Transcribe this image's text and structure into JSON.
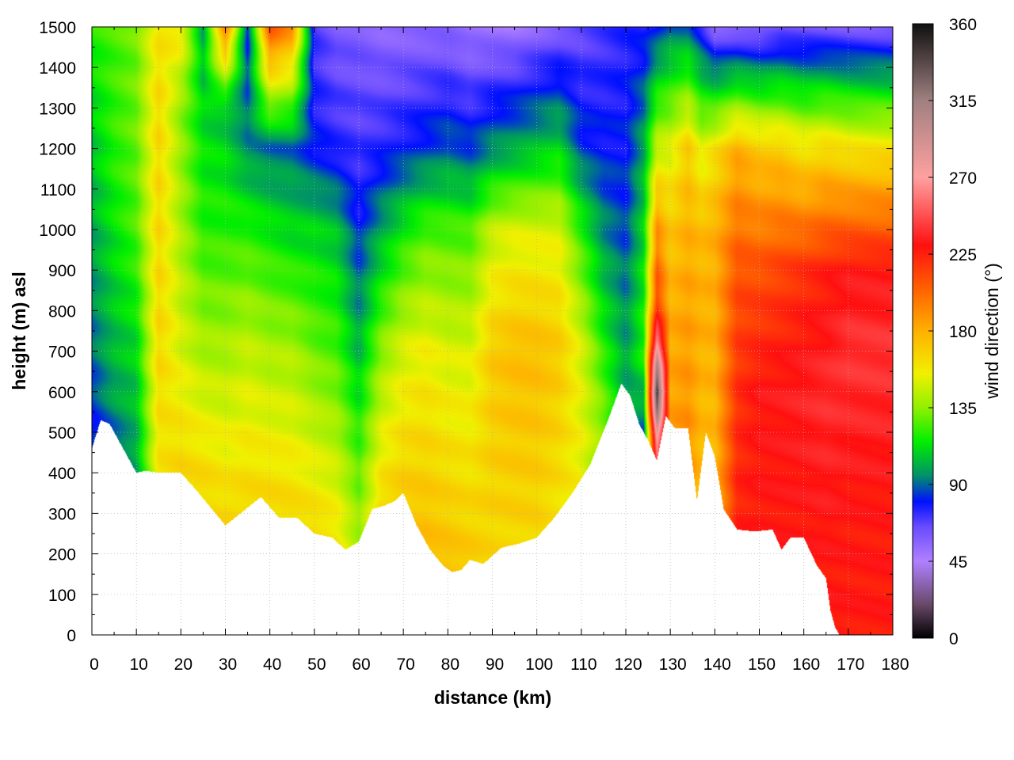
{
  "chart_data": {
    "type": "heatmap",
    "title": "",
    "xlabel": "distance (km)",
    "ylabel": "height (m) asl",
    "colorbar_label": "wind direction (°)",
    "xlim": [
      0,
      180
    ],
    "ylim": [
      0,
      1500
    ],
    "zlim": [
      0,
      360
    ],
    "x_ticks": [
      0,
      10,
      20,
      30,
      40,
      50,
      60,
      70,
      80,
      90,
      100,
      110,
      120,
      130,
      140,
      150,
      160,
      170,
      180
    ],
    "y_ticks": [
      0,
      100,
      200,
      300,
      400,
      500,
      600,
      700,
      800,
      900,
      1000,
      1100,
      1200,
      1300,
      1400,
      1500
    ],
    "colorbar_ticks": [
      0,
      45,
      90,
      135,
      180,
      225,
      270,
      315,
      360
    ],
    "grid": true,
    "colormap": [
      {
        "value": 0,
        "color": "#000000"
      },
      {
        "value": 20,
        "color": "#6a4a6a"
      },
      {
        "value": 45,
        "color": "#b080ff"
      },
      {
        "value": 65,
        "color": "#6a4cff"
      },
      {
        "value": 80,
        "color": "#0010ff"
      },
      {
        "value": 95,
        "color": "#00906a"
      },
      {
        "value": 115,
        "color": "#00ee00"
      },
      {
        "value": 135,
        "color": "#90f000"
      },
      {
        "value": 155,
        "color": "#f0f000"
      },
      {
        "value": 180,
        "color": "#ffb000"
      },
      {
        "value": 205,
        "color": "#ff6000"
      },
      {
        "value": 230,
        "color": "#ff1010"
      },
      {
        "value": 270,
        "color": "#ffa0a0"
      },
      {
        "value": 315,
        "color": "#a08080"
      },
      {
        "value": 360,
        "color": "#101010"
      }
    ],
    "terrain": {
      "x": [
        0,
        2,
        4,
        6,
        8,
        10,
        12,
        15,
        20,
        24,
        27,
        30,
        34,
        38,
        42,
        46,
        50,
        54,
        57,
        60,
        63,
        66,
        68,
        70,
        73,
        76,
        79,
        81,
        83,
        85,
        88,
        92,
        96,
        100,
        104,
        108,
        112,
        116,
        119,
        121,
        123,
        125,
        127,
        129,
        131,
        134,
        136,
        138,
        140,
        142,
        145,
        149,
        153,
        155,
        157,
        160,
        163,
        165,
        166,
        167,
        168,
        170,
        175,
        180
      ],
      "height": [
        460,
        530,
        520,
        480,
        440,
        400,
        405,
        400,
        400,
        350,
        310,
        270,
        305,
        340,
        290,
        290,
        250,
        240,
        210,
        230,
        310,
        320,
        330,
        350,
        270,
        210,
        170,
        155,
        160,
        185,
        175,
        215,
        225,
        240,
        290,
        350,
        420,
        530,
        620,
        590,
        520,
        480,
        430,
        540,
        510,
        510,
        330,
        500,
        440,
        310,
        260,
        255,
        260,
        210,
        240,
        240,
        170,
        140,
        60,
        20,
        0,
        0,
        0,
        0
      ]
    },
    "field_profiles": [
      {
        "x": 0,
        "heights": [
          0,
          500,
          700,
          1000,
          1300,
          1500
        ],
        "direction": [
          80,
          80,
          90,
          100,
          110,
          120
        ]
      },
      {
        "x": 5,
        "heights": [
          0,
          450,
          600,
          900,
          1200,
          1500
        ],
        "direction": [
          70,
          85,
          100,
          110,
          120,
          125
        ]
      },
      {
        "x": 10,
        "heights": [
          0,
          450,
          700,
          1000,
          1300,
          1500
        ],
        "direction": [
          90,
          100,
          110,
          125,
          130,
          130
        ]
      },
      {
        "x": 15,
        "heights": [
          0,
          450,
          700,
          1000,
          1300,
          1500
        ],
        "direction": [
          150,
          160,
          165,
          165,
          165,
          160
        ]
      },
      {
        "x": 20,
        "heights": [
          0,
          420,
          700,
          1000,
          1300,
          1500
        ],
        "direction": [
          155,
          165,
          150,
          140,
          135,
          160
        ]
      },
      {
        "x": 25,
        "heights": [
          0,
          380,
          700,
          1000,
          1300,
          1500
        ],
        "direction": [
          160,
          165,
          140,
          120,
          110,
          100
        ]
      },
      {
        "x": 30,
        "heights": [
          0,
          300,
          700,
          1000,
          1300,
          1500
        ],
        "direction": [
          150,
          165,
          140,
          120,
          105,
          200
        ]
      },
      {
        "x": 35,
        "heights": [
          0,
          330,
          700,
          1000,
          1200,
          1500
        ],
        "direction": [
          160,
          165,
          145,
          120,
          95,
          80
        ]
      },
      {
        "x": 40,
        "heights": [
          0,
          330,
          700,
          1000,
          1200,
          1500
        ],
        "direction": [
          160,
          165,
          140,
          115,
          90,
          210
        ]
      },
      {
        "x": 45,
        "heights": [
          0,
          300,
          700,
          1000,
          1200,
          1500
        ],
        "direction": [
          165,
          165,
          140,
          110,
          90,
          190
        ]
      },
      {
        "x": 50,
        "heights": [
          0,
          260,
          700,
          1000,
          1200,
          1500
        ],
        "direction": [
          165,
          165,
          130,
          110,
          80,
          70
        ]
      },
      {
        "x": 55,
        "heights": [
          0,
          240,
          700,
          1000,
          1200,
          1500
        ],
        "direction": [
          165,
          160,
          125,
          105,
          75,
          60
        ]
      },
      {
        "x": 60,
        "heights": [
          0,
          220,
          500,
          800,
          1100,
          1500
        ],
        "direction": [
          170,
          140,
          120,
          95,
          75,
          60
        ]
      },
      {
        "x": 65,
        "heights": [
          0,
          320,
          700,
          1000,
          1200,
          1500
        ],
        "direction": [
          165,
          165,
          135,
          100,
          75,
          55
        ]
      },
      {
        "x": 70,
        "heights": [
          0,
          340,
          700,
          1000,
          1200,
          1500
        ],
        "direction": [
          180,
          170,
          150,
          115,
          80,
          55
        ]
      },
      {
        "x": 75,
        "heights": [
          0,
          230,
          700,
          1000,
          1200,
          1500
        ],
        "direction": [
          185,
          175,
          155,
          125,
          85,
          55
        ]
      },
      {
        "x": 80,
        "heights": [
          0,
          160,
          700,
          1000,
          1200,
          1500
        ],
        "direction": [
          195,
          175,
          150,
          125,
          90,
          55
        ]
      },
      {
        "x": 85,
        "heights": [
          0,
          180,
          700,
          1000,
          1200,
          1500
        ],
        "direction": [
          185,
          170,
          150,
          125,
          85,
          50
        ]
      },
      {
        "x": 90,
        "heights": [
          0,
          215,
          700,
          1000,
          1200,
          1500
        ],
        "direction": [
          150,
          165,
          170,
          145,
          95,
          50
        ]
      },
      {
        "x": 95,
        "heights": [
          0,
          225,
          700,
          1000,
          1200,
          1500
        ],
        "direction": [
          145,
          165,
          175,
          150,
          100,
          50
        ]
      },
      {
        "x": 100,
        "heights": [
          0,
          240,
          700,
          1000,
          1200,
          1500
        ],
        "direction": [
          150,
          165,
          175,
          150,
          105,
          55
        ]
      },
      {
        "x": 105,
        "heights": [
          0,
          290,
          700,
          1000,
          1200,
          1500
        ],
        "direction": [
          140,
          160,
          170,
          150,
          110,
          60
        ]
      },
      {
        "x": 110,
        "heights": [
          0,
          350,
          700,
          1000,
          1200,
          1500
        ],
        "direction": [
          140,
          155,
          150,
          120,
          85,
          65
        ]
      },
      {
        "x": 115,
        "heights": [
          0,
          500,
          700,
          1000,
          1200,
          1500
        ],
        "direction": [
          120,
          135,
          120,
          95,
          80,
          70
        ]
      },
      {
        "x": 120,
        "heights": [
          0,
          600,
          800,
          1000,
          1200,
          1500
        ],
        "direction": [
          90,
          100,
          95,
          85,
          80,
          75
        ]
      },
      {
        "x": 124,
        "heights": [
          0,
          480,
          700,
          1000,
          1200,
          1500
        ],
        "direction": [
          80,
          85,
          120,
          110,
          100,
          75
        ]
      },
      {
        "x": 127,
        "heights": [
          0,
          440,
          600,
          800,
          1000,
          1500
        ],
        "direction": [
          80,
          250,
          350,
          220,
          190,
          80
        ]
      },
      {
        "x": 130,
        "heights": [
          0,
          520,
          800,
          1000,
          1200,
          1500
        ],
        "direction": [
          180,
          185,
          180,
          170,
          150,
          90
        ]
      },
      {
        "x": 134,
        "heights": [
          0,
          510,
          800,
          1000,
          1200,
          1500
        ],
        "direction": [
          185,
          190,
          185,
          180,
          170,
          90
        ]
      },
      {
        "x": 137,
        "heights": [
          0,
          400,
          800,
          1000,
          1200,
          1500
        ],
        "direction": [
          170,
          175,
          180,
          175,
          150,
          75
        ]
      },
      {
        "x": 140,
        "heights": [
          0,
          300,
          800,
          1000,
          1200,
          1500
        ],
        "direction": [
          160,
          175,
          180,
          180,
          160,
          55
        ]
      },
      {
        "x": 145,
        "heights": [
          0,
          260,
          600,
          900,
          1200,
          1500
        ],
        "direction": [
          200,
          225,
          220,
          210,
          180,
          55
        ]
      },
      {
        "x": 150,
        "heights": [
          0,
          255,
          600,
          900,
          1200,
          1500
        ],
        "direction": [
          215,
          228,
          230,
          210,
          170,
          55
        ]
      },
      {
        "x": 155,
        "heights": [
          0,
          230,
          600,
          900,
          1200,
          1500
        ],
        "direction": [
          220,
          228,
          232,
          215,
          170,
          60
        ]
      },
      {
        "x": 160,
        "heights": [
          0,
          240,
          600,
          900,
          1200,
          1500
        ],
        "direction": [
          225,
          228,
          235,
          220,
          160,
          60
        ]
      },
      {
        "x": 165,
        "heights": [
          0,
          150,
          600,
          900,
          1200,
          1500
        ],
        "direction": [
          230,
          228,
          238,
          225,
          165,
          60
        ]
      },
      {
        "x": 170,
        "heights": [
          0,
          300,
          700,
          900,
          1200,
          1500
        ],
        "direction": [
          228,
          228,
          240,
          230,
          160,
          60
        ]
      },
      {
        "x": 180,
        "heights": [
          0,
          300,
          700,
          900,
          1200,
          1500
        ],
        "direction": [
          228,
          228,
          240,
          230,
          160,
          60
        ]
      }
    ]
  }
}
